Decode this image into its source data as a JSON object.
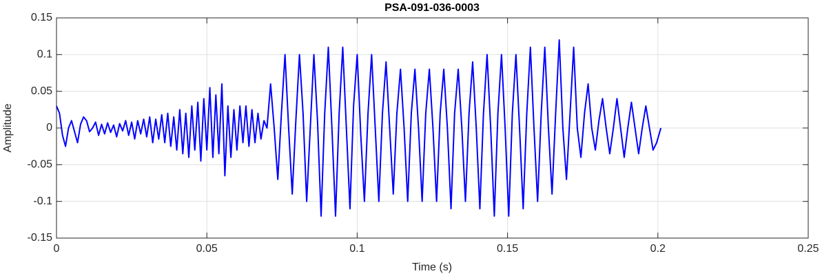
{
  "chart_data": {
    "type": "line",
    "title": "PSA-091-036-0003",
    "xlabel": "Time (s)",
    "ylabel": "Amplitude",
    "xlim": [
      0,
      0.25
    ],
    "xticks": [
      0,
      0.05,
      0.1,
      0.15,
      0.2,
      0.25
    ],
    "ylim": [
      -0.15,
      0.15
    ],
    "yticks": [
      -0.15,
      -0.1,
      -0.05,
      0,
      0.05,
      0.1,
      0.15
    ],
    "grid": true,
    "x": [
      0,
      0.001,
      0.002,
      0.003,
      0.004,
      0.005,
      0.006,
      0.007,
      0.008,
      0.009,
      0.01,
      0.011,
      0.012,
      0.013,
      0.014,
      0.015,
      0.016,
      0.017,
      0.018,
      0.019,
      0.02,
      0.021,
      0.022,
      0.023,
      0.024,
      0.025,
      0.026,
      0.027,
      0.028,
      0.029,
      0.03,
      0.031,
      0.032,
      0.033,
      0.034,
      0.035,
      0.036,
      0.037,
      0.038,
      0.039,
      0.04,
      0.041,
      0.042,
      0.043,
      0.044,
      0.045,
      0.046,
      0.047,
      0.048,
      0.049,
      0.05,
      0.051,
      0.052,
      0.053,
      0.054,
      0.055,
      0.056,
      0.057,
      0.058,
      0.059,
      0.06,
      0.061,
      0.062,
      0.063,
      0.064,
      0.065,
      0.066,
      0.067,
      0.068,
      0.069,
      0.07,
      0.0712,
      0.0724,
      0.0736,
      0.0748,
      0.076,
      0.0772,
      0.0784,
      0.0796,
      0.0808,
      0.082,
      0.0832,
      0.0844,
      0.0856,
      0.0868,
      0.088,
      0.0892,
      0.0904,
      0.0916,
      0.0928,
      0.094,
      0.0952,
      0.0964,
      0.0976,
      0.0988,
      0.1,
      0.1012,
      0.1024,
      0.1036,
      0.1048,
      0.106,
      0.1072,
      0.1084,
      0.1096,
      0.1108,
      0.112,
      0.1132,
      0.1144,
      0.1156,
      0.1168,
      0.118,
      0.1192,
      0.1204,
      0.1216,
      0.1228,
      0.124,
      0.1252,
      0.1264,
      0.1276,
      0.1288,
      0.13,
      0.1312,
      0.1324,
      0.1336,
      0.1348,
      0.136,
      0.1372,
      0.1384,
      0.1396,
      0.1408,
      0.142,
      0.1432,
      0.1444,
      0.1456,
      0.1468,
      0.148,
      0.1492,
      0.1504,
      0.1516,
      0.1528,
      0.154,
      0.1552,
      0.1564,
      0.1576,
      0.1588,
      0.16,
      0.1612,
      0.1624,
      0.1636,
      0.1648,
      0.166,
      0.1672,
      0.1684,
      0.1696,
      0.1708,
      0.172,
      0.1732,
      0.1744,
      0.1756,
      0.1768,
      0.178,
      0.1792,
      0.1804,
      0.1816,
      0.1828,
      0.184,
      0.1852,
      0.1864,
      0.1876,
      0.1888,
      0.19,
      0.1912,
      0.1924,
      0.1936,
      0.1948,
      0.196,
      0.1972,
      0.1984,
      0.1996,
      0.201
    ],
    "series": [
      {
        "color": "#0000ff",
        "values": [
          0.03,
          0.02,
          -0.01,
          -0.025,
          0.0,
          0.01,
          -0.005,
          -0.02,
          0.005,
          0.015,
          0.01,
          -0.005,
          0.0,
          0.008,
          -0.01,
          0.005,
          -0.008,
          0.007,
          -0.006,
          0.004,
          -0.012,
          0.006,
          -0.004,
          0.01,
          -0.01,
          0.008,
          -0.015,
          0.01,
          -0.008,
          0.012,
          -0.012,
          0.015,
          -0.02,
          0.012,
          -0.015,
          0.018,
          -0.02,
          0.02,
          -0.025,
          0.015,
          -0.03,
          0.025,
          -0.035,
          0.02,
          -0.04,
          0.03,
          -0.03,
          0.035,
          -0.045,
          0.04,
          -0.03,
          0.055,
          -0.04,
          0.045,
          -0.035,
          0.06,
          -0.065,
          0.03,
          -0.04,
          0.025,
          -0.03,
          0.03,
          -0.02,
          0.03,
          -0.025,
          0.025,
          -0.02,
          0.02,
          -0.015,
          0.01,
          0,
          0.06,
          0.0,
          -0.07,
          0.02,
          0.1,
          0.0,
          -0.09,
          0.01,
          0.1,
          0.02,
          -0.1,
          0.0,
          0.1,
          0.01,
          -0.12,
          0.02,
          0.11,
          0.0,
          -0.12,
          0.02,
          0.11,
          0.0,
          -0.11,
          0.03,
          0.1,
          -0.01,
          -0.1,
          0.02,
          0.1,
          0.0,
          -0.1,
          0.02,
          0.09,
          0.0,
          -0.09,
          0.02,
          0.08,
          0.0,
          -0.1,
          0.02,
          0.08,
          0.0,
          -0.1,
          0.02,
          0.08,
          0.0,
          -0.1,
          0.02,
          0.08,
          0.0,
          -0.11,
          0.02,
          0.08,
          0.0,
          -0.1,
          0.02,
          0.09,
          0.0,
          -0.11,
          0.02,
          0.1,
          0.0,
          -0.12,
          0.02,
          0.1,
          0.0,
          -0.12,
          0.02,
          0.1,
          0.0,
          -0.11,
          0.02,
          0.11,
          0.0,
          -0.1,
          0.02,
          0.11,
          0.0,
          -0.09,
          0.02,
          0.12,
          0.0,
          -0.07,
          0.02,
          0.11,
          0.0,
          -0.04,
          0.02,
          0.06,
          0.0,
          -0.03,
          0.01,
          0.04,
          0.0,
          -0.035,
          0.0,
          0.04,
          0.0,
          -0.04,
          0.0,
          0.035,
          0.0,
          -0.035,
          0.0,
          0.03,
          0.0,
          -0.03,
          -0.02,
          0.0
        ]
      }
    ]
  }
}
